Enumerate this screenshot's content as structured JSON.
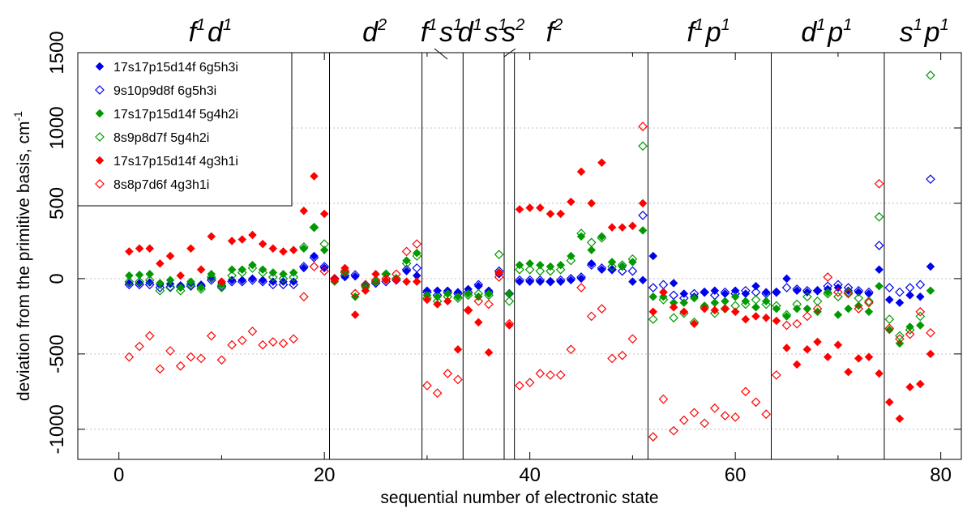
{
  "chart_data": {
    "type": "scatter",
    "xlabel": "sequential number of electronic state",
    "ylabel": "deviation from the primitive basis, cm",
    "ylabel_sup": "-1",
    "xlim": [
      -4,
      82
    ],
    "ylim": [
      -1200,
      1500
    ],
    "x_ticks": [
      0,
      20,
      40,
      60,
      80
    ],
    "y_ticks": [
      -1000,
      -500,
      0,
      500,
      1000,
      1500
    ],
    "y_ticks_labeled_separately": true,
    "y_gridlines": [
      -1000,
      -500,
      0,
      500,
      1000
    ],
    "grid": "horizontal dotted",
    "legend_position": "top-left",
    "dividers": [
      20.5,
      29.5,
      33.5,
      37.5,
      38.5,
      51.5,
      63.5,
      74.5
    ],
    "regions": [
      {
        "x": 9,
        "parts": [
          [
            "f",
            "1"
          ],
          [
            "d",
            "1"
          ]
        ]
      },
      {
        "x": 25,
        "parts": [
          [
            "d",
            "2"
          ]
        ]
      },
      {
        "x": 31.5,
        "parts": [
          [
            "f",
            "1"
          ],
          [
            "s",
            "1"
          ]
        ]
      },
      {
        "x": 35.5,
        "parts": [
          [
            "d",
            "1"
          ],
          [
            "s",
            "1"
          ]
        ]
      },
      {
        "x": 38.5,
        "parts": [
          [
            "s",
            "2"
          ]
        ]
      },
      {
        "x": 42.5,
        "parts": [
          [
            "f",
            "2"
          ]
        ]
      },
      {
        "x": 57.5,
        "parts": [
          [
            "f",
            "1"
          ],
          [
            "p",
            "1"
          ]
        ]
      },
      {
        "x": 69,
        "parts": [
          [
            "d",
            "1"
          ],
          [
            "p",
            "1"
          ]
        ]
      },
      {
        "x": 78.5,
        "parts": [
          [
            "s",
            "1"
          ],
          [
            "p",
            "1"
          ]
        ]
      }
    ],
    "series": [
      {
        "name": "17s17p15d14f  6g5h3i",
        "color": "#0000ee",
        "marker": "filled-diamond",
        "x": [
          1,
          2,
          3,
          4,
          5,
          6,
          7,
          8,
          9,
          10,
          11,
          12,
          13,
          14,
          15,
          16,
          17,
          18,
          19,
          20,
          21,
          22,
          23,
          24,
          25,
          26,
          27,
          28,
          29,
          30,
          31,
          32,
          33,
          34,
          35,
          36,
          37,
          38,
          39,
          40,
          41,
          42,
          43,
          44,
          45,
          46,
          47,
          48,
          49,
          50,
          51,
          52,
          53,
          54,
          55,
          56,
          57,
          58,
          59,
          60,
          61,
          62,
          63,
          64,
          65,
          66,
          67,
          68,
          69,
          70,
          71,
          72,
          73,
          74,
          75,
          76,
          77,
          78,
          79
        ],
        "values": [
          -30,
          -30,
          -25,
          -40,
          -35,
          -45,
          -30,
          -40,
          0,
          -30,
          -10,
          -10,
          0,
          -10,
          -20,
          -20,
          -20,
          70,
          150,
          70,
          0,
          10,
          15,
          -40,
          -20,
          -10,
          -5,
          50,
          20,
          -80,
          -80,
          -80,
          -90,
          -70,
          -50,
          -80,
          30,
          -100,
          -20,
          -20,
          -20,
          -20,
          -20,
          -10,
          0,
          100,
          60,
          60,
          80,
          -20,
          -10,
          150,
          -90,
          -30,
          -100,
          -120,
          -90,
          -80,
          -100,
          -80,
          -100,
          -50,
          -90,
          -90,
          0,
          -80,
          -90,
          -80,
          -70,
          -60,
          -80,
          -90,
          -100,
          60,
          -140,
          -160,
          -110,
          -120,
          80
        ]
      },
      {
        "name": "9s10p9d8f  6g5h3i",
        "color": "#0000ee",
        "marker": "open-diamond",
        "x": [
          1,
          2,
          3,
          4,
          5,
          6,
          7,
          8,
          9,
          10,
          11,
          12,
          13,
          14,
          15,
          16,
          17,
          18,
          19,
          20,
          21,
          22,
          23,
          24,
          25,
          26,
          27,
          28,
          29,
          30,
          31,
          32,
          33,
          34,
          35,
          36,
          37,
          38,
          39,
          40,
          41,
          42,
          43,
          44,
          45,
          46,
          47,
          48,
          49,
          50,
          51,
          52,
          53,
          54,
          55,
          56,
          57,
          58,
          59,
          60,
          61,
          62,
          63,
          64,
          65,
          66,
          67,
          68,
          69,
          70,
          71,
          72,
          73,
          74,
          75,
          76,
          77,
          78,
          79
        ],
        "values": [
          -40,
          -40,
          -40,
          -60,
          -55,
          -55,
          -50,
          -50,
          -10,
          -50,
          -20,
          -20,
          -10,
          -20,
          -40,
          -40,
          -40,
          80,
          140,
          80,
          0,
          20,
          25,
          -40,
          -30,
          -20,
          -10,
          60,
          70,
          -90,
          -110,
          -90,
          -100,
          -90,
          -40,
          -90,
          50,
          -100,
          -10,
          -10,
          -10,
          -20,
          -10,
          0,
          10,
          90,
          70,
          60,
          50,
          50,
          420,
          -60,
          -40,
          -110,
          -130,
          -100,
          -90,
          -110,
          -90,
          -100,
          -80,
          -90,
          -100,
          -90,
          -60,
          -70,
          -80,
          -80,
          -50,
          -40,
          -60,
          -80,
          -90,
          220,
          -60,
          -90,
          -60,
          -40,
          660
        ]
      },
      {
        "name": "17s17p15d14f  5g4h2i",
        "color": "#009900",
        "marker": "filled-diamond",
        "x": [
          1,
          2,
          3,
          4,
          5,
          6,
          7,
          8,
          9,
          10,
          11,
          12,
          13,
          14,
          15,
          16,
          17,
          18,
          19,
          20,
          21,
          22,
          23,
          24,
          25,
          26,
          27,
          28,
          29,
          30,
          31,
          32,
          33,
          34,
          35,
          36,
          37,
          38,
          39,
          40,
          41,
          42,
          43,
          44,
          45,
          46,
          47,
          48,
          49,
          50,
          51,
          52,
          53,
          54,
          55,
          56,
          57,
          58,
          59,
          60,
          61,
          62,
          63,
          64,
          65,
          66,
          67,
          68,
          69,
          70,
          71,
          72,
          73,
          74,
          75,
          76,
          77,
          78,
          79
        ],
        "values": [
          20,
          25,
          30,
          -30,
          -10,
          -60,
          -20,
          -60,
          30,
          -40,
          60,
          60,
          90,
          60,
          40,
          30,
          40,
          200,
          340,
          190,
          -20,
          50,
          -120,
          -60,
          -20,
          30,
          0,
          120,
          170,
          -110,
          -120,
          -100,
          -120,
          -100,
          -120,
          -100,
          40,
          -100,
          90,
          100,
          90,
          80,
          90,
          150,
          280,
          190,
          280,
          110,
          80,
          110,
          320,
          -120,
          -120,
          -160,
          -160,
          -130,
          -180,
          -160,
          -150,
          -120,
          -150,
          -190,
          -150,
          -200,
          -250,
          -200,
          -200,
          -220,
          -90,
          -240,
          -200,
          -180,
          -220,
          -50,
          -340,
          -430,
          -320,
          -310,
          -80
        ]
      },
      {
        "name": "8s9p8d7f  5g4h2i",
        "color": "#009900",
        "marker": "open-diamond",
        "x": [
          1,
          2,
          3,
          4,
          5,
          6,
          7,
          8,
          9,
          10,
          11,
          12,
          13,
          14,
          15,
          16,
          17,
          18,
          19,
          20,
          21,
          22,
          23,
          24,
          25,
          26,
          27,
          28,
          29,
          30,
          31,
          32,
          33,
          34,
          35,
          36,
          37,
          38,
          39,
          40,
          41,
          42,
          43,
          44,
          45,
          46,
          47,
          48,
          49,
          50,
          51,
          52,
          53,
          54,
          55,
          56,
          57,
          58,
          59,
          60,
          61,
          62,
          63,
          64,
          65,
          66,
          67,
          68,
          69,
          70,
          71,
          72,
          73,
          74,
          75,
          76,
          77,
          78,
          79
        ],
        "values": [
          -20,
          -20,
          -10,
          -80,
          -60,
          -80,
          -40,
          -70,
          10,
          -60,
          20,
          40,
          70,
          40,
          10,
          0,
          10,
          210,
          340,
          230,
          0,
          40,
          -100,
          -50,
          -20,
          30,
          0,
          100,
          150,
          -130,
          -150,
          -120,
          -130,
          -110,
          -100,
          -110,
          160,
          -150,
          60,
          60,
          50,
          50,
          60,
          120,
          300,
          240,
          270,
          80,
          90,
          130,
          880,
          -270,
          -140,
          -260,
          -230,
          -290,
          -190,
          -230,
          -200,
          -180,
          -170,
          -140,
          -170,
          -180,
          -240,
          -170,
          -120,
          -150,
          -100,
          -120,
          -90,
          -130,
          -150,
          410,
          -270,
          -380,
          -340,
          -250,
          1350
        ]
      },
      {
        "name": "17s17p15d14f  4g3h1i",
        "color": "#ff0000",
        "marker": "filled-diamond",
        "x": [
          1,
          2,
          3,
          4,
          5,
          6,
          7,
          8,
          9,
          10,
          11,
          12,
          13,
          14,
          15,
          16,
          17,
          18,
          19,
          20,
          21,
          22,
          23,
          24,
          25,
          26,
          27,
          28,
          29,
          30,
          31,
          32,
          33,
          34,
          35,
          36,
          37,
          38,
          39,
          40,
          41,
          42,
          43,
          44,
          45,
          46,
          47,
          48,
          49,
          50,
          51,
          52,
          53,
          54,
          55,
          56,
          57,
          58,
          59,
          60,
          61,
          62,
          63,
          64,
          65,
          66,
          67,
          68,
          69,
          70,
          71,
          72,
          73,
          74,
          75,
          76,
          77,
          78,
          79
        ],
        "values": [
          180,
          200,
          200,
          100,
          150,
          20,
          200,
          60,
          280,
          -20,
          250,
          260,
          290,
          230,
          200,
          180,
          190,
          450,
          680,
          430,
          -10,
          70,
          -240,
          -80,
          30,
          -10,
          -10,
          -20,
          -20,
          -140,
          -170,
          -150,
          -470,
          -210,
          -290,
          -490,
          40,
          -310,
          460,
          470,
          470,
          430,
          430,
          510,
          710,
          500,
          770,
          340,
          340,
          350,
          500,
          -220,
          -90,
          -190,
          -220,
          -300,
          -200,
          -210,
          -200,
          -220,
          -270,
          -250,
          -260,
          -280,
          -460,
          -570,
          -470,
          -420,
          -520,
          -440,
          -620,
          -530,
          -520,
          -630,
          -820,
          -930,
          -720,
          -700,
          -500
        ]
      },
      {
        "name": "8s8p7d6f  4g3h1i",
        "color": "#ff0000",
        "marker": "open-diamond",
        "x": [
          1,
          2,
          3,
          4,
          5,
          6,
          7,
          8,
          9,
          10,
          11,
          12,
          13,
          14,
          15,
          16,
          17,
          18,
          19,
          20,
          21,
          22,
          23,
          24,
          25,
          26,
          27,
          28,
          29,
          30,
          31,
          32,
          33,
          34,
          35,
          36,
          37,
          38,
          39,
          40,
          41,
          42,
          43,
          44,
          45,
          46,
          47,
          48,
          49,
          50,
          51,
          52,
          53,
          54,
          55,
          56,
          57,
          58,
          59,
          60,
          61,
          62,
          63,
          64,
          65,
          66,
          67,
          68,
          69,
          70,
          71,
          72,
          73,
          74,
          75,
          76,
          77,
          78,
          79
        ],
        "values": [
          -520,
          -450,
          -380,
          -600,
          -480,
          -580,
          -520,
          -530,
          -380,
          -540,
          -440,
          -410,
          -350,
          -440,
          -420,
          -430,
          -400,
          -120,
          80,
          50,
          0,
          50,
          -100,
          -40,
          -10,
          0,
          30,
          180,
          230,
          -710,
          -760,
          -630,
          -670,
          -210,
          -150,
          -170,
          10,
          -300,
          -710,
          -690,
          -630,
          -640,
          -640,
          -470,
          -60,
          -250,
          -200,
          -530,
          -510,
          -400,
          1010,
          -1050,
          -800,
          -1010,
          -940,
          -890,
          -960,
          -860,
          -910,
          -920,
          -750,
          -820,
          -900,
          -640,
          -310,
          -300,
          -250,
          -200,
          10,
          -90,
          -100,
          -200,
          -160,
          630,
          -330,
          -400,
          -370,
          -220,
          -360
        ]
      }
    ]
  }
}
